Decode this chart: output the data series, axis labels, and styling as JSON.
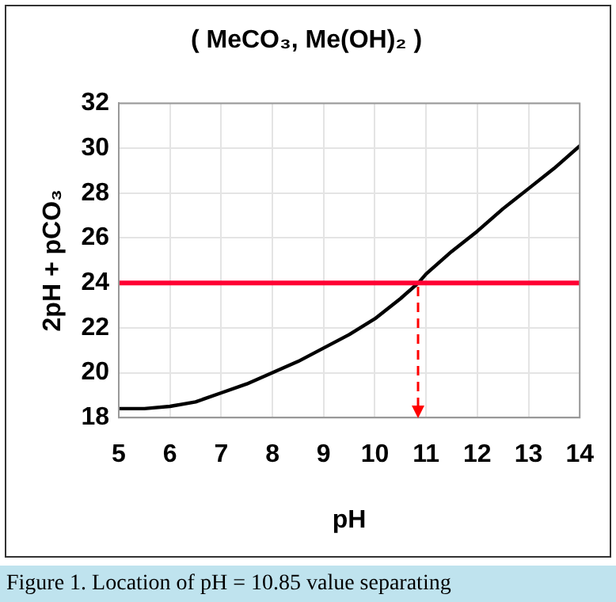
{
  "chart_data": {
    "type": "line",
    "title": "( MeCO₃, Me(OH)₂ )",
    "xlabel": "pH",
    "ylabel": "2pH + pCO₃",
    "x": [
      5,
      5.5,
      6,
      6.5,
      7,
      7.5,
      8,
      8.5,
      9,
      9.5,
      10,
      10.5,
      10.85,
      11,
      11.5,
      12,
      12.5,
      13,
      13.5,
      14
    ],
    "series": [
      {
        "color": "#000000",
        "values": [
          18.4,
          18.4,
          18.5,
          18.7,
          19.1,
          19.5,
          20.0,
          20.5,
          21.1,
          21.7,
          22.4,
          23.3,
          24.0,
          24.4,
          25.4,
          26.3,
          27.3,
          28.2,
          29.1,
          30.1
        ]
      }
    ],
    "ref_lines": [
      {
        "axis": "y",
        "value": 24,
        "color": "#ff0033"
      },
      {
        "axis": "x",
        "value": 10.85,
        "color": "#ff0000",
        "line_style": "dashed"
      }
    ],
    "xlim": [
      5,
      14
    ],
    "xticks": [
      5,
      6,
      7,
      8,
      9,
      10,
      11,
      12,
      13,
      14
    ],
    "ylim": [
      18,
      32
    ],
    "yticks": [
      18,
      20,
      22,
      24,
      26,
      28,
      30,
      32
    ],
    "grid": true,
    "legend": false,
    "marker": "none",
    "annotations": [
      "Figure 1. Location of pH = 10.85 value separating"
    ]
  }
}
